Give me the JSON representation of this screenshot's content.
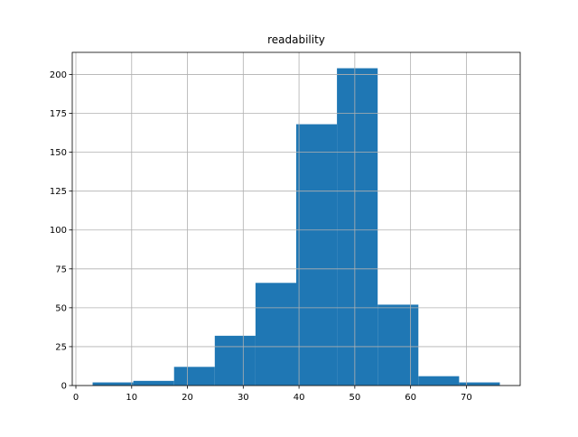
{
  "chart_data": {
    "type": "histogram",
    "title": "readability",
    "bins": [
      3,
      10.3,
      17.6,
      24.9,
      32.2,
      39.5,
      46.8,
      54.1,
      61.4,
      68.7,
      76
    ],
    "values": [
      2,
      3,
      12,
      32,
      66,
      168,
      204,
      52,
      6,
      2
    ],
    "color": "#1f77b4",
    "xlim": [
      -0.65,
      79.65
    ],
    "xticks": [
      0,
      10,
      20,
      30,
      40,
      50,
      60,
      70
    ],
    "ylim": [
      0,
      214.2
    ],
    "yticks": [
      0,
      25,
      50,
      75,
      100,
      125,
      150,
      175,
      200
    ],
    "grid": true
  }
}
